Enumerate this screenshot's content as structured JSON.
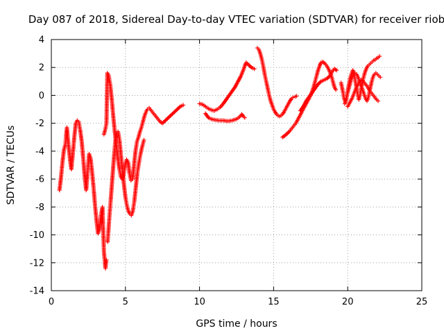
{
  "chart_data": {
    "type": "scatter",
    "title": "Day 087 of 2018, Sidereal Day-to-day VTEC variation (SDTVAR) for receiver riob",
    "xlabel": "GPS time / hours",
    "ylabel": "SDTVAR / TECUs",
    "xlim": [
      0,
      25
    ],
    "ylim": [
      -14,
      4
    ],
    "x_ticks": [
      0,
      5,
      10,
      15,
      20,
      25
    ],
    "y_ticks": [
      -14,
      -12,
      -10,
      -8,
      -6,
      -4,
      -2,
      0,
      2,
      4
    ],
    "x_tick_labels": [
      "0",
      "5",
      "10",
      "15",
      "20",
      "25"
    ],
    "y_tick_labels": [
      "-14",
      "-12",
      "-10",
      "-8",
      "-6",
      "-4",
      "-2",
      "0",
      "2",
      "4"
    ],
    "grid": true,
    "marker": "plus",
    "color": "#ff0000",
    "series": [
      {
        "points": [
          [
            0.55,
            -6.8
          ],
          [
            0.65,
            -5.9
          ],
          [
            0.75,
            -4.8
          ],
          [
            0.85,
            -3.9
          ],
          [
            0.95,
            -3.5
          ],
          [
            1.0,
            -2.8
          ],
          [
            1.05,
            -2.3
          ],
          [
            1.15,
            -3.5
          ],
          [
            1.25,
            -4.5
          ],
          [
            1.35,
            -5.3
          ],
          [
            1.45,
            -4.2
          ],
          [
            1.55,
            -3.0
          ],
          [
            1.65,
            -2.0
          ],
          [
            1.75,
            -1.8
          ],
          [
            1.85,
            -1.9
          ],
          [
            1.95,
            -2.5
          ],
          [
            2.05,
            -3.3
          ],
          [
            2.15,
            -4.5
          ],
          [
            2.25,
            -5.8
          ],
          [
            2.35,
            -6.8
          ],
          [
            2.45,
            -5.5
          ],
          [
            2.55,
            -4.2
          ],
          [
            2.65,
            -4.5
          ],
          [
            2.75,
            -5.5
          ],
          [
            2.85,
            -6.6
          ],
          [
            2.95,
            -7.9
          ],
          [
            3.05,
            -9.0
          ],
          [
            3.15,
            -9.9
          ],
          [
            3.25,
            -9.6
          ],
          [
            3.35,
            -8.6
          ],
          [
            3.45,
            -8.0
          ],
          [
            3.55,
            -11.2
          ],
          [
            3.65,
            -12.4
          ],
          [
            3.72,
            -11.8
          ]
        ]
      },
      {
        "points": [
          [
            3.55,
            -2.8
          ],
          [
            3.65,
            -2.4
          ],
          [
            3.72,
            -2.0
          ],
          [
            3.78,
            1.6
          ],
          [
            3.88,
            1.4
          ],
          [
            3.98,
            0.7
          ],
          [
            4.08,
            -0.3
          ],
          [
            4.18,
            -1.5
          ],
          [
            4.28,
            -2.6
          ],
          [
            4.38,
            -3.5
          ],
          [
            4.48,
            -4.4
          ],
          [
            4.58,
            -5.2
          ],
          [
            4.68,
            -5.8
          ],
          [
            4.78,
            -6.0
          ],
          [
            4.88,
            -5.7
          ],
          [
            4.98,
            -5.0
          ],
          [
            5.08,
            -4.6
          ],
          [
            5.18,
            -4.8
          ],
          [
            5.28,
            -5.6
          ],
          [
            5.38,
            -6.1
          ],
          [
            5.48,
            -6.0
          ],
          [
            5.58,
            -5.0
          ],
          [
            5.68,
            -4.0
          ],
          [
            5.78,
            -3.3
          ],
          [
            5.88,
            -3.0
          ],
          [
            5.98,
            -2.6
          ],
          [
            6.08,
            -2.3
          ],
          [
            6.18,
            -1.9
          ],
          [
            6.28,
            -1.5
          ],
          [
            6.38,
            -1.2
          ],
          [
            6.48,
            -1.0
          ],
          [
            6.6,
            -0.9
          ],
          [
            6.75,
            -1.1
          ],
          [
            6.9,
            -1.3
          ],
          [
            7.05,
            -1.5
          ],
          [
            7.2,
            -1.7
          ],
          [
            7.35,
            -1.9
          ],
          [
            7.5,
            -2.0
          ],
          [
            7.7,
            -1.8
          ],
          [
            7.9,
            -1.6
          ],
          [
            8.1,
            -1.4
          ],
          [
            8.3,
            -1.2
          ],
          [
            8.5,
            -1.0
          ],
          [
            8.7,
            -0.8
          ],
          [
            8.9,
            -0.7
          ]
        ]
      },
      {
        "points": [
          [
            3.8,
            -10.5
          ],
          [
            3.9,
            -9.0
          ],
          [
            4.0,
            -7.6
          ],
          [
            4.1,
            -6.2
          ],
          [
            4.2,
            -4.8
          ],
          [
            4.3,
            -3.5
          ],
          [
            4.4,
            -2.7
          ],
          [
            4.5,
            -2.6
          ],
          [
            4.6,
            -3.2
          ],
          [
            4.7,
            -4.3
          ],
          [
            4.8,
            -5.4
          ],
          [
            4.9,
            -6.4
          ],
          [
            5.0,
            -7.3
          ],
          [
            5.1,
            -7.9
          ],
          [
            5.2,
            -8.3
          ],
          [
            5.3,
            -8.5
          ],
          [
            5.4,
            -8.6
          ],
          [
            5.5,
            -8.3
          ],
          [
            5.6,
            -7.6
          ],
          [
            5.7,
            -6.6
          ],
          [
            5.8,
            -5.6
          ],
          [
            5.9,
            -4.9
          ],
          [
            6.0,
            -4.3
          ],
          [
            6.1,
            -3.8
          ],
          [
            6.2,
            -3.4
          ],
          [
            6.25,
            -3.2
          ]
        ]
      },
      {
        "points": [
          [
            10.0,
            -0.6
          ],
          [
            10.2,
            -0.65
          ],
          [
            10.4,
            -0.8
          ],
          [
            10.6,
            -0.95
          ],
          [
            10.8,
            -1.05
          ],
          [
            11.0,
            -1.1
          ],
          [
            11.2,
            -1.0
          ],
          [
            11.4,
            -0.85
          ],
          [
            11.6,
            -0.6
          ],
          [
            11.8,
            -0.3
          ],
          [
            12.0,
            0.0
          ],
          [
            12.2,
            0.3
          ],
          [
            12.4,
            0.6
          ],
          [
            12.6,
            1.0
          ],
          [
            12.8,
            1.4
          ],
          [
            12.95,
            1.8
          ],
          [
            13.05,
            2.1
          ],
          [
            13.15,
            2.35
          ],
          [
            13.3,
            2.2
          ],
          [
            13.5,
            2.0
          ],
          [
            13.7,
            1.9
          ]
        ]
      },
      {
        "points": [
          [
            10.4,
            -1.3
          ],
          [
            10.6,
            -1.6
          ],
          [
            10.8,
            -1.7
          ],
          [
            11.0,
            -1.75
          ],
          [
            11.3,
            -1.8
          ],
          [
            11.6,
            -1.8
          ],
          [
            11.9,
            -1.85
          ],
          [
            12.2,
            -1.8
          ],
          [
            12.5,
            -1.7
          ],
          [
            12.7,
            -1.55
          ],
          [
            12.85,
            -1.35
          ],
          [
            12.95,
            -1.5
          ],
          [
            13.05,
            -1.6
          ]
        ]
      },
      {
        "points": [
          [
            13.9,
            3.4
          ],
          [
            14.0,
            3.3
          ],
          [
            14.1,
            3.0
          ],
          [
            14.2,
            2.6
          ],
          [
            14.3,
            2.1
          ],
          [
            14.4,
            1.5
          ],
          [
            14.5,
            1.0
          ],
          [
            14.6,
            0.5
          ],
          [
            14.7,
            0.0
          ],
          [
            14.8,
            -0.4
          ],
          [
            14.9,
            -0.7
          ],
          [
            15.0,
            -1.0
          ],
          [
            15.1,
            -1.2
          ],
          [
            15.2,
            -1.35
          ],
          [
            15.3,
            -1.45
          ],
          [
            15.4,
            -1.5
          ],
          [
            15.5,
            -1.45
          ],
          [
            15.6,
            -1.35
          ],
          [
            15.7,
            -1.2
          ],
          [
            15.8,
            -1.0
          ],
          [
            15.9,
            -0.8
          ],
          [
            16.0,
            -0.6
          ],
          [
            16.1,
            -0.4
          ],
          [
            16.2,
            -0.25
          ],
          [
            16.3,
            -0.15
          ],
          [
            16.45,
            -0.1
          ],
          [
            16.55,
            -0.05
          ]
        ]
      },
      {
        "points": [
          [
            15.6,
            -3.0
          ],
          [
            15.75,
            -2.9
          ],
          [
            15.9,
            -2.75
          ],
          [
            16.05,
            -2.6
          ],
          [
            16.2,
            -2.4
          ],
          [
            16.35,
            -2.2
          ],
          [
            16.5,
            -2.0
          ],
          [
            16.6,
            -1.8
          ],
          [
            16.7,
            -1.6
          ],
          [
            16.85,
            -1.3
          ],
          [
            17.0,
            -1.0
          ],
          [
            17.1,
            -0.8
          ],
          [
            17.2,
            -0.6
          ],
          [
            17.3,
            -0.4
          ],
          [
            17.4,
            -0.2
          ],
          [
            17.5,
            0.0
          ],
          [
            17.6,
            0.3
          ],
          [
            17.7,
            0.6
          ],
          [
            17.8,
            1.0
          ],
          [
            17.9,
            1.4
          ],
          [
            18.0,
            1.8
          ],
          [
            18.1,
            2.1
          ],
          [
            18.2,
            2.35
          ],
          [
            18.3,
            2.4
          ],
          [
            18.45,
            2.3
          ],
          [
            18.6,
            2.1
          ],
          [
            18.75,
            1.8
          ],
          [
            18.9,
            1.4
          ],
          [
            19.0,
            1.0
          ],
          [
            19.1,
            0.6
          ],
          [
            19.2,
            0.4
          ]
        ]
      },
      {
        "points": [
          [
            16.8,
            -1.1
          ],
          [
            17.0,
            -0.8
          ],
          [
            17.2,
            -0.4
          ],
          [
            17.4,
            -0.1
          ],
          [
            17.6,
            0.2
          ],
          [
            17.8,
            0.5
          ],
          [
            18.0,
            0.8
          ],
          [
            18.2,
            1.0
          ],
          [
            18.4,
            1.1
          ],
          [
            18.6,
            1.2
          ],
          [
            18.8,
            1.4
          ],
          [
            18.95,
            1.7
          ],
          [
            19.1,
            1.9
          ],
          [
            19.25,
            1.8
          ]
        ]
      },
      {
        "points": [
          [
            19.55,
            0.9
          ],
          [
            19.65,
            0.4
          ],
          [
            19.75,
            -0.2
          ],
          [
            19.85,
            -0.5
          ],
          [
            19.95,
            0.0
          ],
          [
            20.05,
            0.6
          ],
          [
            20.15,
            1.2
          ],
          [
            20.25,
            1.5
          ],
          [
            20.35,
            1.8
          ],
          [
            20.45,
            1.4
          ],
          [
            20.55,
            0.8
          ],
          [
            20.65,
            0.2
          ],
          [
            20.75,
            -0.3
          ],
          [
            20.85,
            0.1
          ],
          [
            20.95,
            0.7
          ],
          [
            21.05,
            1.2
          ],
          [
            21.15,
            1.6
          ],
          [
            21.25,
            1.9
          ],
          [
            21.35,
            2.1
          ],
          [
            21.45,
            2.2
          ],
          [
            21.55,
            2.3
          ],
          [
            21.65,
            2.4
          ],
          [
            21.75,
            2.5
          ],
          [
            21.85,
            2.55
          ],
          [
            21.95,
            2.65
          ],
          [
            22.05,
            2.7
          ],
          [
            22.15,
            2.8
          ]
        ]
      },
      {
        "points": [
          [
            19.8,
            -0.6
          ],
          [
            19.9,
            -0.3
          ],
          [
            20.0,
            0.2
          ],
          [
            20.1,
            0.6
          ],
          [
            20.2,
            1.0
          ],
          [
            20.3,
            1.3
          ],
          [
            20.4,
            1.5
          ],
          [
            20.5,
            1.6
          ],
          [
            20.6,
            1.5
          ],
          [
            20.7,
            1.3
          ],
          [
            20.8,
            1.0
          ],
          [
            20.9,
            0.7
          ],
          [
            21.0,
            0.4
          ],
          [
            21.1,
            0.1
          ],
          [
            21.2,
            -0.2
          ],
          [
            21.3,
            -0.4
          ],
          [
            21.4,
            -0.1
          ],
          [
            21.5,
            0.4
          ],
          [
            21.6,
            0.9
          ],
          [
            21.7,
            1.3
          ],
          [
            21.8,
            1.5
          ],
          [
            21.9,
            1.6
          ],
          [
            22.0,
            1.5
          ],
          [
            22.1,
            1.4
          ],
          [
            22.2,
            1.3
          ]
        ]
      },
      {
        "points": [
          [
            20.0,
            -0.8
          ],
          [
            20.15,
            -0.5
          ],
          [
            20.3,
            -0.2
          ],
          [
            20.45,
            0.2
          ],
          [
            20.6,
            0.6
          ],
          [
            20.75,
            0.9
          ],
          [
            20.9,
            1.1
          ],
          [
            21.05,
            1.0
          ],
          [
            21.2,
            0.8
          ],
          [
            21.35,
            0.6
          ],
          [
            21.5,
            0.3
          ],
          [
            21.65,
            0.1
          ],
          [
            21.8,
            -0.1
          ],
          [
            21.95,
            -0.3
          ],
          [
            22.05,
            -0.4
          ]
        ]
      }
    ]
  }
}
